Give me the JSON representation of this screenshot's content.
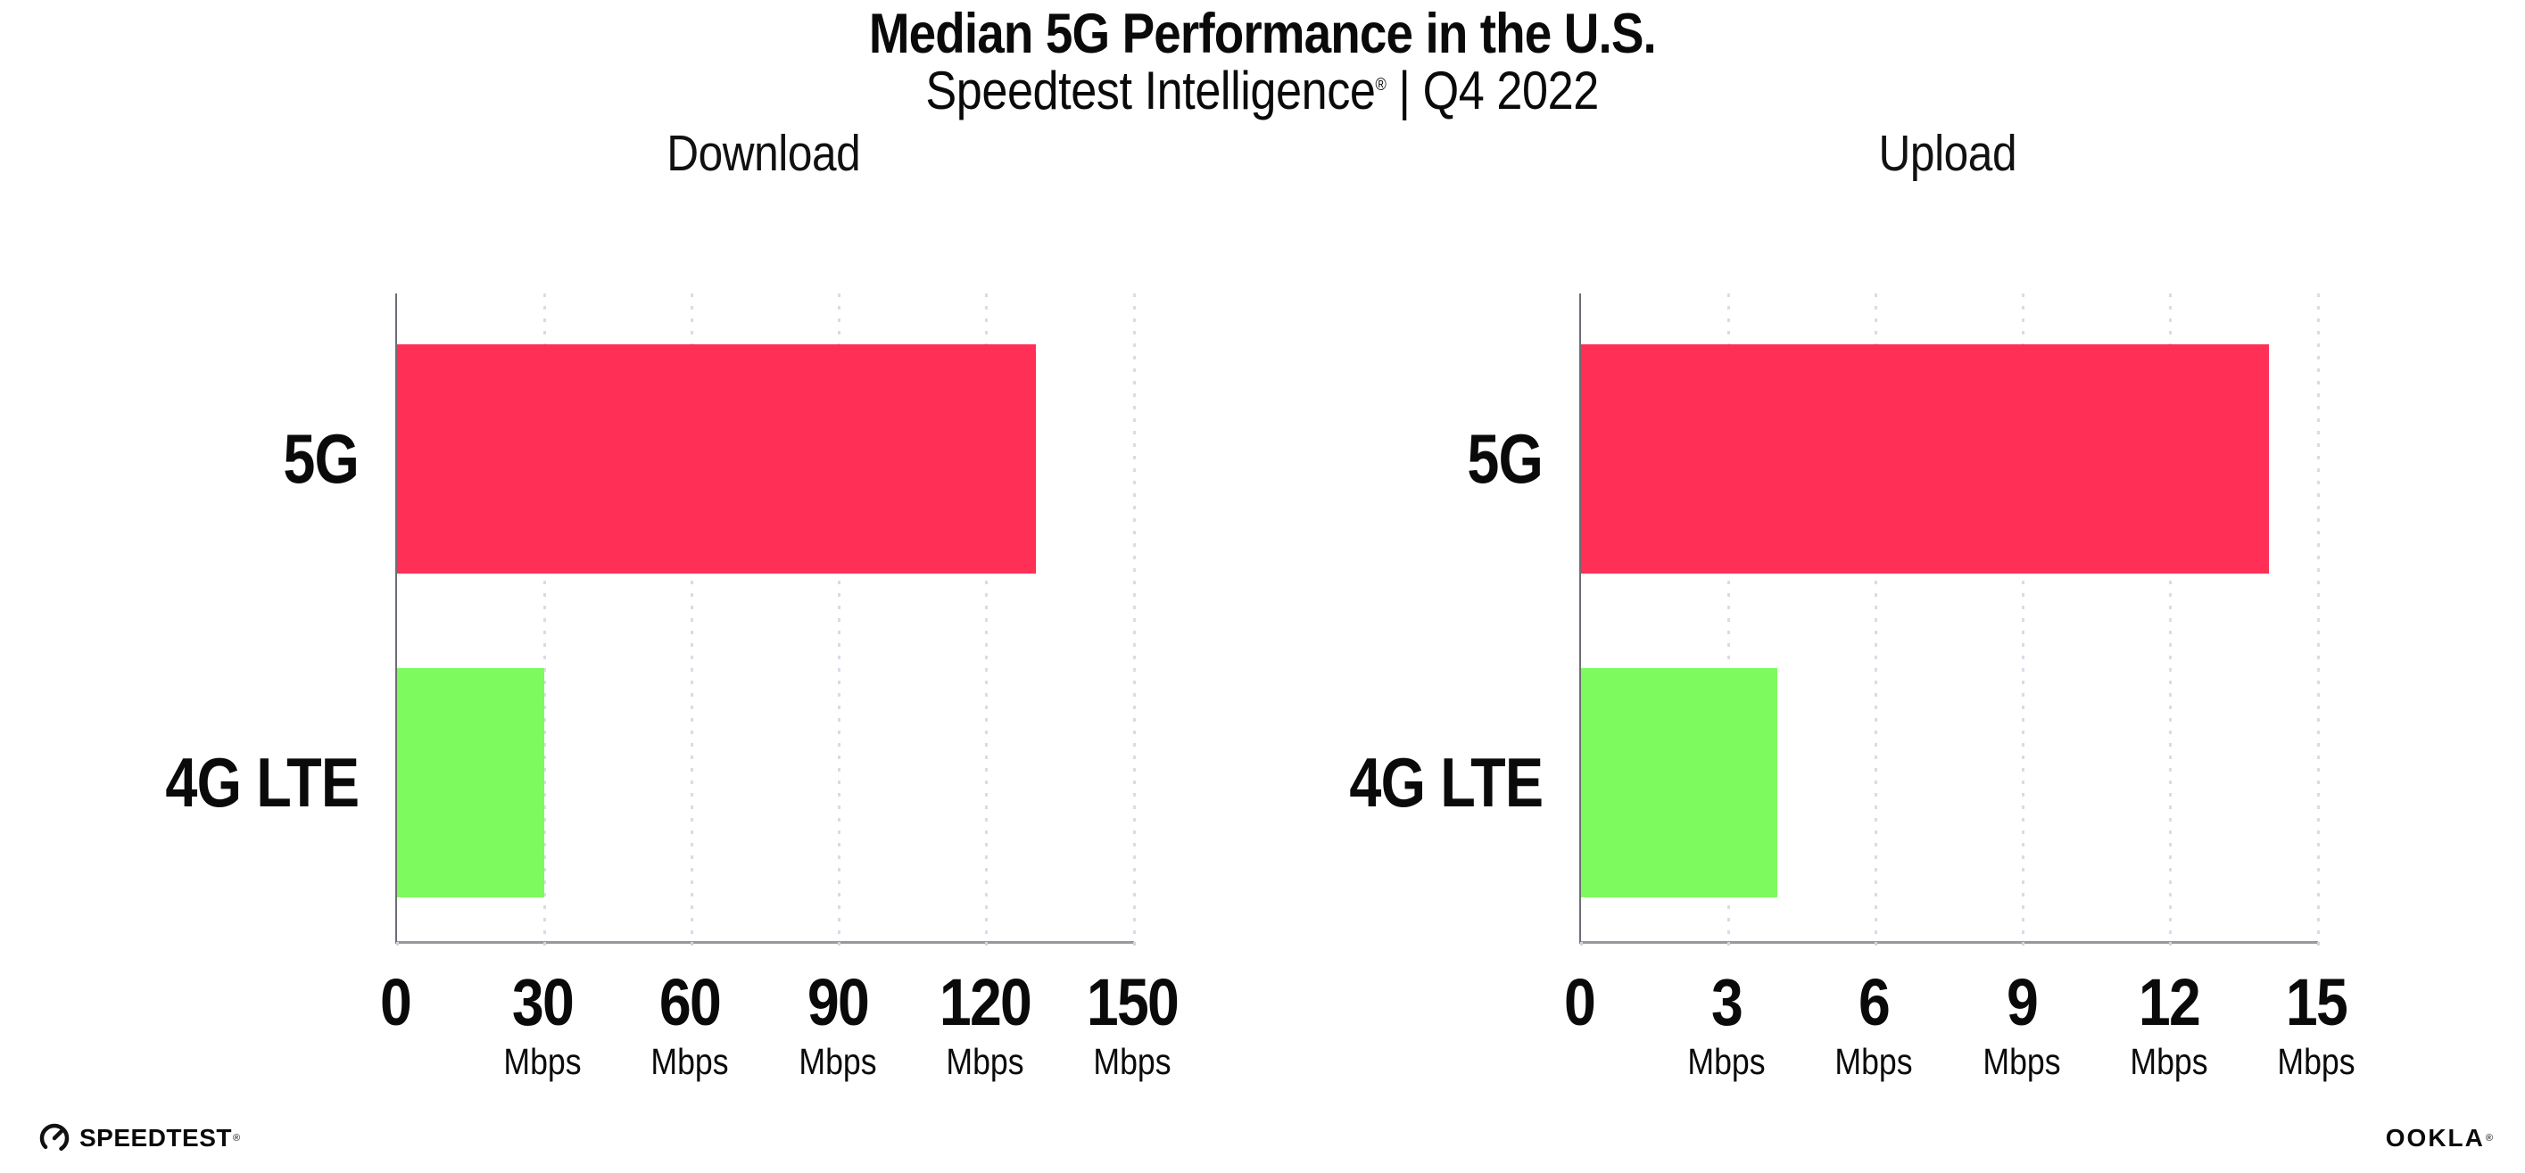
{
  "header": {
    "title": "Median 5G Performance in the U.S.",
    "subtitle_brand": "Speedtest Intelligence",
    "subtitle_reg": "®",
    "subtitle_separator": "|",
    "subtitle_period": "Q4 2022"
  },
  "chart_data": [
    {
      "type": "bar",
      "orientation": "horizontal",
      "title": "Download",
      "categories": [
        "5G",
        "4G LTE"
      ],
      "values": [
        130,
        30
      ],
      "unit": "Mbps",
      "xlim": [
        0,
        150
      ],
      "xticks": [
        0,
        30,
        60,
        90,
        120,
        150
      ],
      "bar_colors": [
        "#ff2f55",
        "#7dfa5e"
      ],
      "grid": "dotted-vertical-on",
      "legend": "none"
    },
    {
      "type": "bar",
      "orientation": "horizontal",
      "title": "Upload",
      "categories": [
        "5G",
        "4G LTE"
      ],
      "values": [
        14,
        4
      ],
      "unit": "Mbps",
      "xlim": [
        0,
        15
      ],
      "xticks": [
        0,
        3,
        6,
        9,
        12,
        15
      ],
      "bar_colors": [
        "#ff2f55",
        "#7dfa5e"
      ],
      "grid": "dotted-vertical-on",
      "legend": "none"
    }
  ],
  "footer": {
    "speedtest_label": "SPEEDTEST",
    "speedtest_mark": "®",
    "ookla_label": "OOKLA",
    "ookla_mark": "®"
  },
  "colors": {
    "bar_5g": "#ff2f55",
    "bar_4g_lte": "#7dfa5e",
    "axis_vertical": "#6d6d75",
    "axis_horizontal": "#97979d",
    "gridline": "#dbdbe6",
    "text": "#0a0a0a",
    "background": "#ffffff"
  }
}
